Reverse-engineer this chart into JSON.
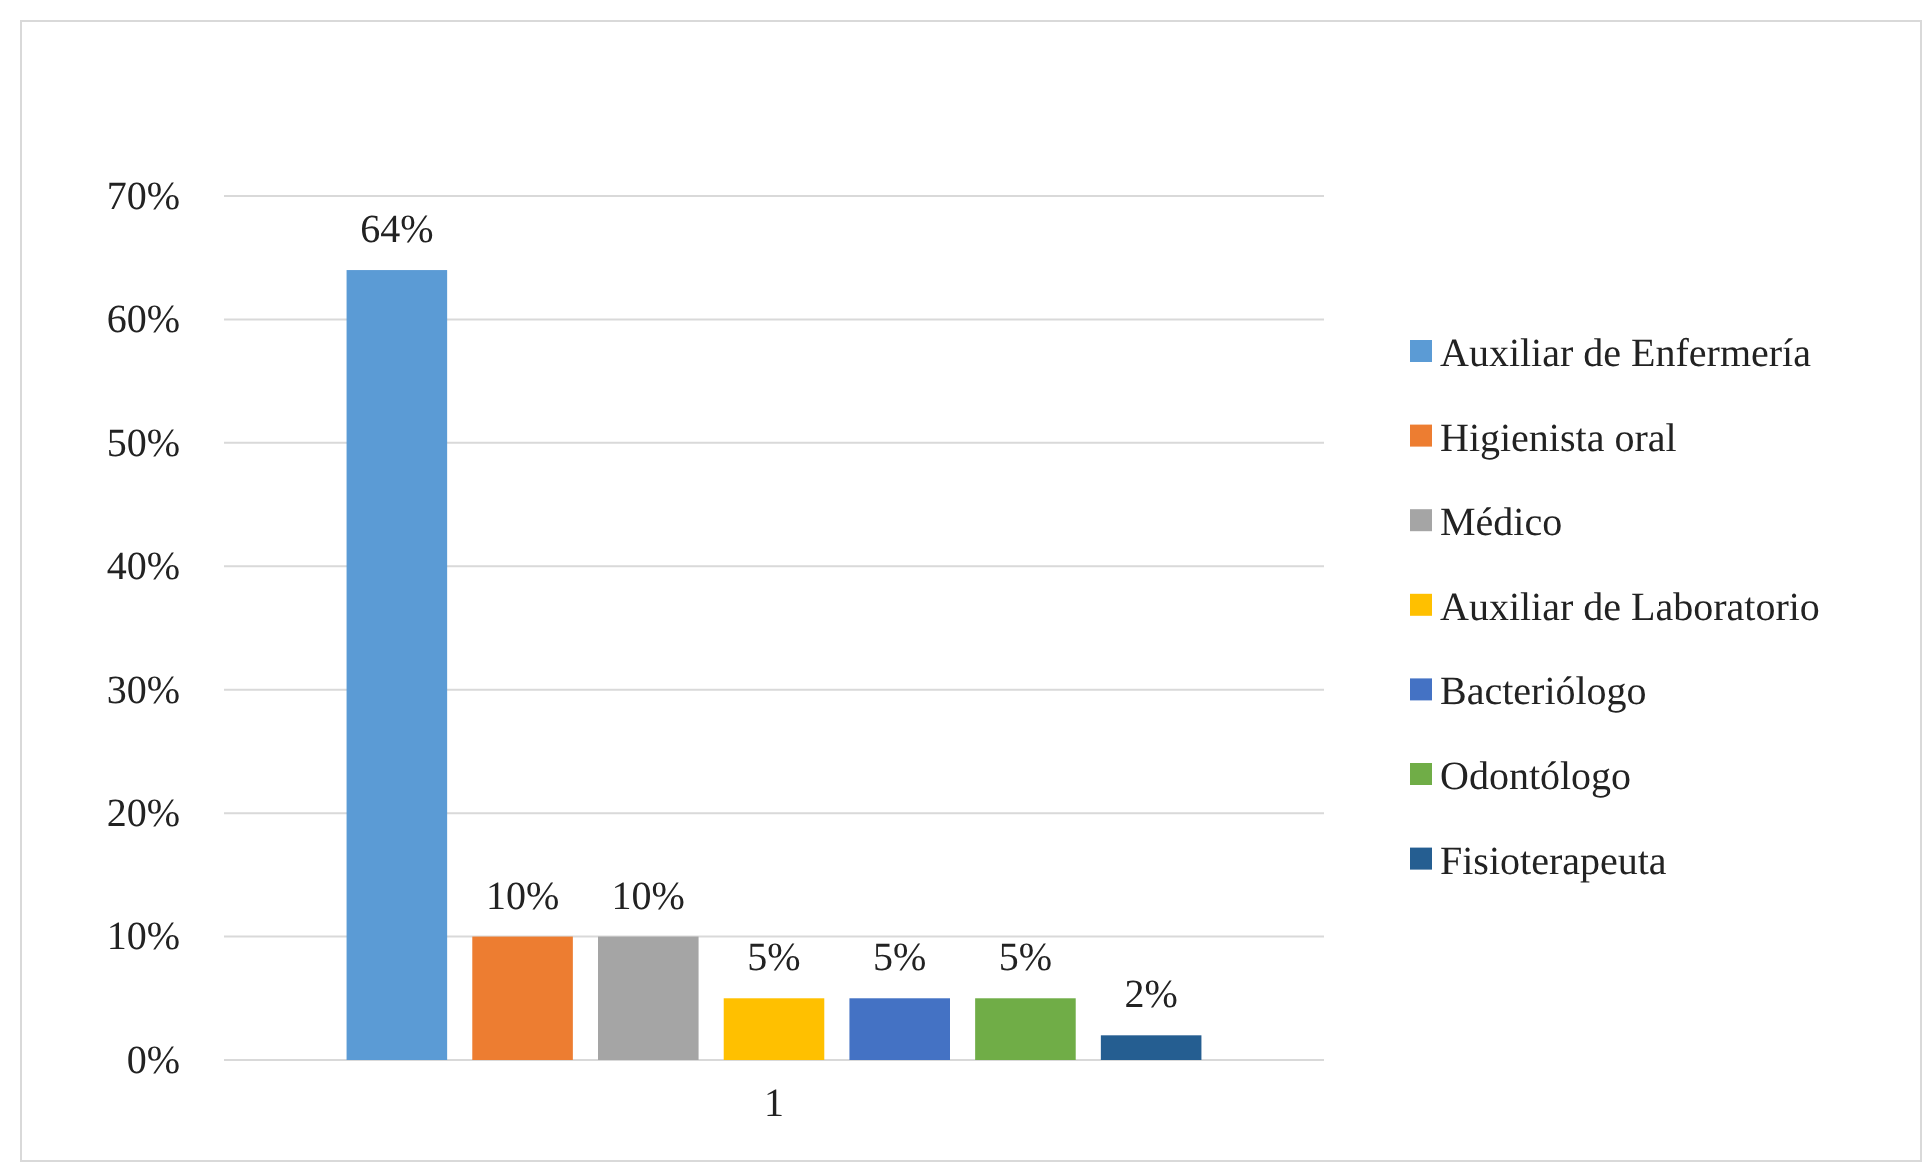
{
  "chart_data": {
    "type": "bar",
    "categories": [
      "1"
    ],
    "series": [
      {
        "name": "Auxiliar de Enfermería",
        "color": "#5b9bd5",
        "values": [
          64
        ],
        "value_labels": [
          "64%"
        ]
      },
      {
        "name": "Higienista oral",
        "color": "#ed7d31",
        "values": [
          10
        ],
        "value_labels": [
          "10%"
        ]
      },
      {
        "name": "Médico",
        "color": "#a5a5a5",
        "values": [
          10
        ],
        "value_labels": [
          "10%"
        ]
      },
      {
        "name": "Auxiliar de Laboratorio",
        "color": "#ffc000",
        "values": [
          5
        ],
        "value_labels": [
          "5%"
        ]
      },
      {
        "name": "Bacteriólogo",
        "color": "#4472c4",
        "values": [
          5
        ],
        "value_labels": [
          "5%"
        ]
      },
      {
        "name": "Odontólogo",
        "color": "#70ad47",
        "values": [
          5
        ],
        "value_labels": [
          "5%"
        ]
      },
      {
        "name": "Fisioterapeuta",
        "color": "#255e91",
        "values": [
          2
        ],
        "value_labels": [
          "2%"
        ]
      }
    ],
    "ylim": [
      0,
      70
    ],
    "yticks": [
      {
        "value": 0,
        "label": "0%"
      },
      {
        "value": 10,
        "label": "10%"
      },
      {
        "value": 20,
        "label": "20%"
      },
      {
        "value": 30,
        "label": "30%"
      },
      {
        "value": 40,
        "label": "40%"
      },
      {
        "value": 50,
        "label": "50%"
      },
      {
        "value": 60,
        "label": "60%"
      },
      {
        "value": 70,
        "label": "70%"
      }
    ],
    "grid": "y",
    "legend": "right"
  }
}
